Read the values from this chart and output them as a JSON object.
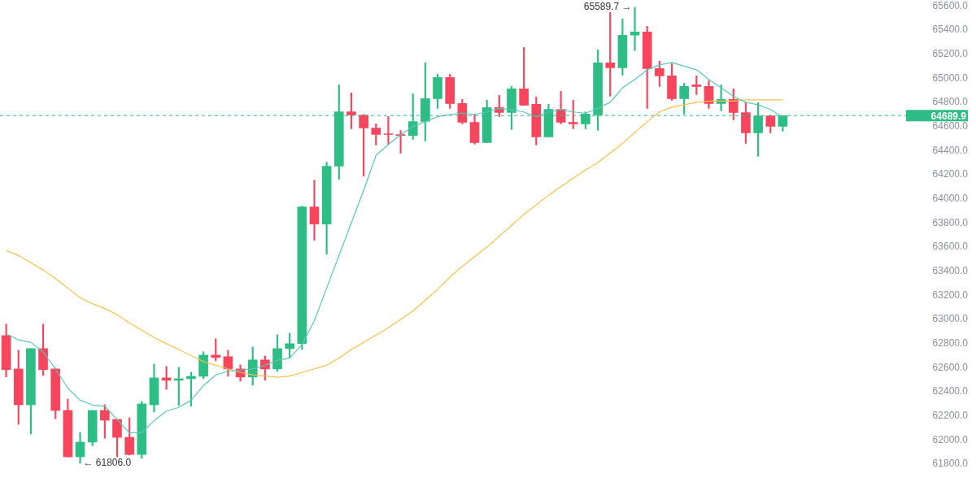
{
  "chart_data": {
    "type": "candlestick",
    "categories": [
      null,
      null,
      null,
      null,
      null,
      null,
      null,
      null,
      null,
      null,
      null,
      null,
      null,
      null,
      null,
      null,
      null,
      null,
      null,
      null,
      null,
      null,
      null,
      null,
      null,
      null,
      null,
      null,
      null,
      null,
      null,
      null,
      null,
      null,
      null,
      null,
      null,
      null,
      null,
      null,
      null,
      null,
      null,
      null,
      null,
      null,
      null,
      null,
      null,
      null,
      null,
      null,
      null,
      null,
      null,
      null,
      null,
      null,
      null,
      null,
      null,
      null,
      null,
      null
    ],
    "ohlc": [
      [
        62866,
        62961,
        62522,
        62583
      ],
      [
        62589,
        62745,
        62130,
        62292
      ],
      [
        62292,
        62758,
        62049,
        62758
      ],
      [
        62758,
        62961,
        62535,
        62583
      ],
      [
        62589,
        62596,
        62177,
        62245
      ],
      [
        62245,
        62340,
        61860,
        61860
      ],
      [
        61860,
        62063,
        61806,
        61982
      ],
      [
        61982,
        62245,
        61952,
        62245
      ],
      [
        62245,
        62292,
        62015,
        62164
      ],
      [
        62171,
        62171,
        61860,
        62022
      ],
      [
        62022,
        62184,
        61874,
        61880
      ],
      [
        61880,
        62319,
        61847,
        62299
      ],
      [
        62292,
        62630,
        62232,
        62515
      ],
      [
        62515,
        62610,
        62420,
        62495
      ],
      [
        62495,
        62603,
        62285,
        62508
      ],
      [
        62508,
        62562,
        62279,
        62528
      ],
      [
        62528,
        62731,
        62508,
        62704
      ],
      [
        62704,
        62839,
        62657,
        62684
      ],
      [
        62691,
        62745,
        62528,
        62589
      ],
      [
        62589,
        62623,
        62488,
        62522
      ],
      [
        62522,
        62771,
        62454,
        62664
      ],
      [
        62664,
        62697,
        62495,
        62589
      ],
      [
        62589,
        62873,
        62569,
        62758
      ],
      [
        62758,
        62886,
        62677,
        62799
      ],
      [
        62799,
        63939,
        62751,
        63933
      ],
      [
        63933,
        64155,
        63656,
        63791
      ],
      [
        63791,
        64304,
        63541,
        64270
      ],
      [
        64270,
        64945,
        64162,
        64722
      ],
      [
        64722,
        64878,
        64581,
        64695
      ],
      [
        64695,
        64700,
        64189,
        64587
      ],
      [
        64587,
        64621,
        64446,
        64533
      ],
      [
        64540,
        64682,
        64452,
        64533
      ],
      [
        64533,
        64567,
        64378,
        64526
      ],
      [
        64526,
        64871,
        64493,
        64641
      ],
      [
        64641,
        65127,
        64479,
        64830
      ],
      [
        64830,
        65033,
        64749,
        65006
      ],
      [
        65006,
        65033,
        64749,
        64790
      ],
      [
        64790,
        64824,
        64621,
        64634
      ],
      [
        64634,
        64702,
        64452,
        64466
      ],
      [
        64466,
        64817,
        64466,
        64756
      ],
      [
        64756,
        64857,
        64682,
        64715
      ],
      [
        64715,
        64932,
        64574,
        64911
      ],
      [
        64911,
        65256,
        64776,
        64776
      ],
      [
        64783,
        64844,
        64446,
        64513
      ],
      [
        64513,
        64783,
        64513,
        64742
      ],
      [
        64742,
        64891,
        64621,
        64634
      ],
      [
        64634,
        64817,
        64581,
        64621
      ],
      [
        64621,
        64722,
        64581,
        64702
      ],
      [
        64695,
        65235,
        64567,
        65127
      ],
      [
        65127,
        65546,
        64850,
        65087
      ],
      [
        65087,
        65492,
        65026,
        65357
      ],
      [
        65357,
        65589.7,
        65229,
        65384
      ],
      [
        65384,
        65431,
        64749,
        65080
      ],
      [
        65080,
        65141,
        64932,
        65019
      ],
      [
        65019,
        65120,
        64817,
        64830
      ],
      [
        64830,
        64958,
        64702,
        64932
      ],
      [
        64945,
        65019,
        64864,
        64932
      ],
      [
        64932,
        64979,
        64749,
        64790
      ],
      [
        64790,
        64945,
        64729,
        64824
      ],
      [
        64824,
        64911,
        64655,
        64715
      ],
      [
        64715,
        64797,
        64459,
        64547
      ],
      [
        64547,
        64797,
        64351,
        64688
      ],
      [
        64688,
        64695,
        64547,
        64601
      ],
      [
        64601,
        64690,
        64560,
        64689.9
      ]
    ],
    "colors": [
      "#f6465d",
      "#f6465d",
      "#2ebd85",
      "#f6465d",
      "#f6465d",
      "#f6465d",
      "#2ebd85",
      "#2ebd85",
      "#f6465d",
      "#f6465d",
      "#f6465d",
      "#2ebd85",
      "#2ebd85",
      "#f6465d",
      "#2ebd85",
      "#2ebd85",
      "#2ebd85",
      "#f6465d",
      "#f6465d",
      "#f6465d",
      "#2ebd85",
      "#f6465d",
      "#2ebd85",
      "#2ebd85",
      "#2ebd85",
      "#f6465d",
      "#2ebd85",
      "#2ebd85",
      "#f6465d",
      "#f6465d",
      "#f6465d",
      "#f6465d",
      "#f6465d",
      "#2ebd85",
      "#2ebd85",
      "#2ebd85",
      "#f6465d",
      "#f6465d",
      "#f6465d",
      "#2ebd85",
      "#f6465d",
      "#2ebd85",
      "#f6465d",
      "#f6465d",
      "#2ebd85",
      "#f6465d",
      "#f6465d",
      "#2ebd85",
      "#2ebd85",
      "#f6465d",
      "#2ebd85",
      "#2ebd85",
      "#f6465d",
      "#f6465d",
      "#f6465d",
      "#2ebd85",
      "#f6465d",
      "#f6465d",
      "#2ebd85",
      "#f6465d",
      "#f6465d",
      "#2ebd85",
      "#f6465d",
      "#2ebd85"
    ],
    "series": [
      {
        "type": "line",
        "color": "#5cc6b6",
        "values": [
          62880,
          62830,
          62810,
          62730,
          62590,
          62430,
          62330,
          62290,
          62280,
          62170,
          62060,
          62060,
          62160,
          62240,
          62270,
          62330,
          62450,
          62540,
          62570,
          62580,
          62590,
          62620,
          62660,
          62680,
          62790,
          62990,
          63260,
          63530,
          63800,
          64070,
          64360,
          64450,
          64530,
          64600,
          64640,
          64680,
          64700,
          64710,
          64700,
          64720,
          64750,
          64740,
          64720,
          64680,
          64720,
          64740,
          64720,
          64710,
          64750,
          64800,
          64920,
          64990,
          65070,
          65110,
          65130,
          65100,
          65070,
          64990,
          64920,
          64850,
          64800,
          64780,
          64740,
          64680
        ]
      },
      {
        "type": "line",
        "color": "#f2c14e",
        "values": [
          63570,
          63530,
          63470,
          63410,
          63340,
          63260,
          63180,
          63130,
          63090,
          63040,
          62970,
          62910,
          62850,
          62800,
          62750,
          62700,
          62650,
          62620,
          62590,
          62560,
          62540,
          62530,
          62520,
          62530,
          62560,
          62590,
          62620,
          62680,
          62750,
          62810,
          62870,
          62930,
          63000,
          63070,
          63160,
          63250,
          63350,
          63440,
          63520,
          63600,
          63690,
          63780,
          63870,
          63950,
          64030,
          64100,
          64170,
          64240,
          64300,
          64380,
          64460,
          64550,
          64640,
          64720,
          64760,
          64780,
          64800,
          64810,
          64810,
          64810,
          64820,
          64820,
          64820,
          64820
        ]
      }
    ],
    "ylim": [
      61800,
      65600
    ],
    "yticks": [
      {
        "value": 61800,
        "label": "61800.0"
      },
      {
        "value": 62000,
        "label": "62000.0"
      },
      {
        "value": 62200,
        "label": "62200.0"
      },
      {
        "value": 62400,
        "label": "62400.0"
      },
      {
        "value": 62600,
        "label": "62600.0"
      },
      {
        "value": 62800,
        "label": "62800.0"
      },
      {
        "value": 63000,
        "label": "63000.0"
      },
      {
        "value": 63200,
        "label": "63200.0"
      },
      {
        "value": 63400,
        "label": "63400.0"
      },
      {
        "value": 63600,
        "label": "63600.0"
      },
      {
        "value": 63800,
        "label": "63800.0"
      },
      {
        "value": 64000,
        "label": "64000.0"
      },
      {
        "value": 64200,
        "label": "64200.0"
      },
      {
        "value": 64400,
        "label": "64400.0"
      },
      {
        "value": 64600,
        "label": "64600.0"
      },
      {
        "value": 64800,
        "label": "64800.0"
      },
      {
        "value": 65000,
        "label": "65000.0"
      },
      {
        "value": 65200,
        "label": "65200.0"
      },
      {
        "value": 65400,
        "label": "65400.0"
      },
      {
        "value": 65600,
        "label": "65600.0"
      }
    ],
    "tick_labels": "y",
    "grid": false,
    "legend": false,
    "ref_lines": [
      {
        "axis": "y",
        "value": 64689.9,
        "label": "64689.9",
        "color": "#2ebd85",
        "line_style": "dashed"
      }
    ],
    "annotations": [
      "65589.7 →",
      "← 61806.0"
    ]
  }
}
